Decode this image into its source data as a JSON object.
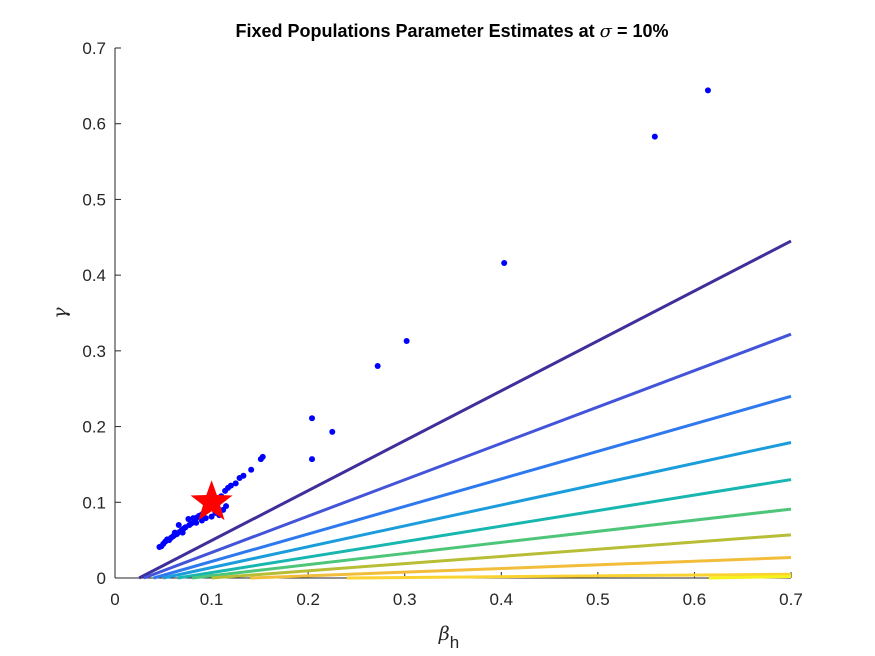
{
  "chart_data": {
    "type": "scatter",
    "title": "Fixed Populations Parameter Estimates at σ = 10%",
    "title_parts": {
      "prefix": "Fixed Populations Parameter Estimates at ",
      "symbol": "σ",
      "suffix": " = 10%"
    },
    "xlabel": {
      "symbol": "β",
      "subscript": "h"
    },
    "ylabel": {
      "symbol": "γ"
    },
    "xlim": [
      0,
      0.7
    ],
    "ylim": [
      0,
      0.7
    ],
    "xticks": [
      "0",
      "0.1",
      "0.2",
      "0.3",
      "0.4",
      "0.5",
      "0.6",
      "0.7"
    ],
    "yticks": [
      "0",
      "0.1",
      "0.2",
      "0.3",
      "0.4",
      "0.5",
      "0.6",
      "0.7"
    ],
    "grid": false,
    "colors": {
      "points": "#0000ff",
      "true_value": "#ff0000",
      "axes": "#262626"
    },
    "contour_lines": [
      {
        "x0": 0.025,
        "x1": 0.7,
        "y1": 0.445,
        "color": "#3e2f9b"
      },
      {
        "x0": 0.03,
        "x1": 0.7,
        "y1": 0.322,
        "color": "#4354d9"
      },
      {
        "x0": 0.04,
        "x1": 0.7,
        "y1": 0.24,
        "color": "#2f79ef"
      },
      {
        "x0": 0.05,
        "x1": 0.7,
        "y1": 0.179,
        "color": "#1c9ddb"
      },
      {
        "x0": 0.065,
        "x1": 0.7,
        "y1": 0.13,
        "color": "#18b6b0"
      },
      {
        "x0": 0.08,
        "x1": 0.7,
        "y1": 0.091,
        "color": "#4ec67a"
      },
      {
        "x0": 0.1,
        "x1": 0.7,
        "y1": 0.057,
        "color": "#b8bd36"
      },
      {
        "x0": 0.14,
        "x1": 0.7,
        "y1": 0.027,
        "color": "#f2bd3a"
      },
      {
        "x0": 0.24,
        "x1": 0.7,
        "y1": 0.005,
        "color": "#fad330"
      },
      {
        "x0": 0.615,
        "x1": 0.7,
        "y1": 0.002,
        "color": "#f5f21d"
      }
    ],
    "series": [
      {
        "type": "scatter",
        "marker": "dot",
        "points": [
          [
            0.614,
            0.644
          ],
          [
            0.559,
            0.583
          ],
          [
            0.403,
            0.416
          ],
          [
            0.302,
            0.313
          ],
          [
            0.272,
            0.28
          ],
          [
            0.225,
            0.193
          ],
          [
            0.204,
            0.211
          ],
          [
            0.204,
            0.157
          ],
          [
            0.153,
            0.16
          ],
          [
            0.151,
            0.157
          ],
          [
            0.141,
            0.143
          ],
          [
            0.133,
            0.135
          ],
          [
            0.129,
            0.132
          ],
          [
            0.125,
            0.125
          ],
          [
            0.12,
            0.122
          ],
          [
            0.117,
            0.119
          ],
          [
            0.114,
            0.115
          ],
          [
            0.112,
            0.09
          ],
          [
            0.11,
            0.108
          ],
          [
            0.107,
            0.103
          ],
          [
            0.105,
            0.104
          ],
          [
            0.103,
            0.1
          ],
          [
            0.101,
            0.097
          ],
          [
            0.099,
            0.096
          ],
          [
            0.097,
            0.093
          ],
          [
            0.095,
            0.09
          ],
          [
            0.093,
            0.088
          ],
          [
            0.091,
            0.085
          ],
          [
            0.089,
            0.083
          ],
          [
            0.087,
            0.082
          ],
          [
            0.085,
            0.08
          ],
          [
            0.083,
            0.077
          ],
          [
            0.081,
            0.079
          ],
          [
            0.079,
            0.072
          ],
          [
            0.077,
            0.07
          ],
          [
            0.076,
            0.078
          ],
          [
            0.073,
            0.067
          ],
          [
            0.071,
            0.065
          ],
          [
            0.069,
            0.063
          ],
          [
            0.067,
            0.061
          ],
          [
            0.066,
            0.07
          ],
          [
            0.064,
            0.058
          ],
          [
            0.062,
            0.06
          ],
          [
            0.06,
            0.055
          ],
          [
            0.058,
            0.053
          ],
          [
            0.056,
            0.05
          ],
          [
            0.054,
            0.051
          ],
          [
            0.052,
            0.048
          ],
          [
            0.05,
            0.045
          ],
          [
            0.048,
            0.042
          ],
          [
            0.046,
            0.041
          ],
          [
            0.1,
            0.081
          ],
          [
            0.104,
            0.086
          ],
          [
            0.108,
            0.083
          ],
          [
            0.09,
            0.076
          ],
          [
            0.094,
            0.079
          ],
          [
            0.084,
            0.073
          ],
          [
            0.07,
            0.06
          ],
          [
            0.061,
            0.056
          ],
          [
            0.115,
            0.095
          ]
        ]
      },
      {
        "type": "scatter",
        "marker": "star",
        "points": [
          [
            0.1,
            0.1
          ]
        ]
      }
    ]
  }
}
